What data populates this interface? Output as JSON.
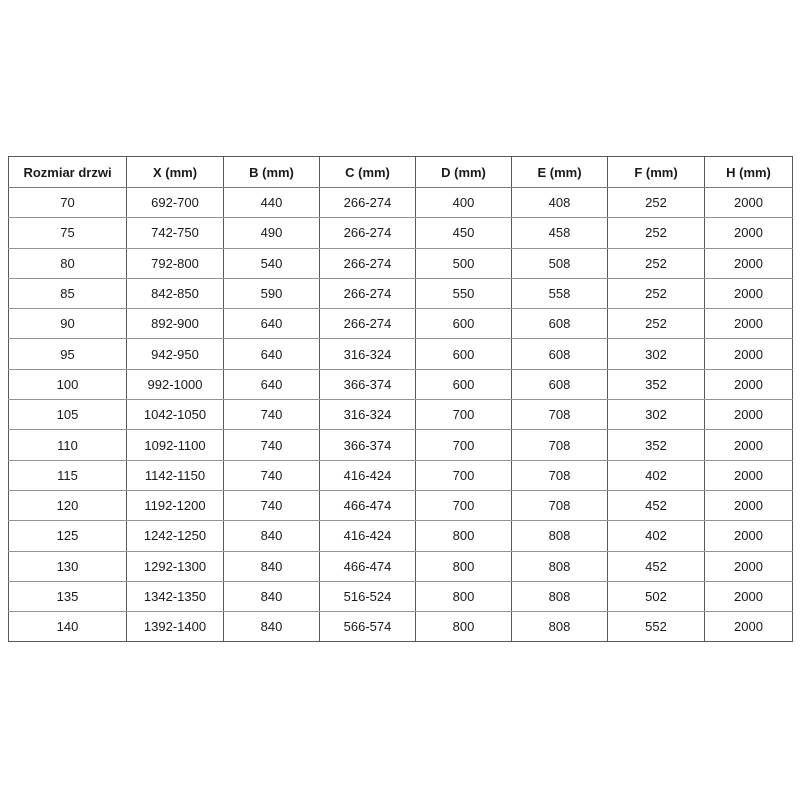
{
  "table": {
    "columns": [
      "Rozmiar drzwi",
      "X (mm)",
      "B (mm)",
      "C (mm)",
      "D (mm)",
      "E (mm)",
      "F (mm)",
      "H (mm)"
    ],
    "rows": [
      [
        "70",
        "692-700",
        "440",
        "266-274",
        "400",
        "408",
        "252",
        "2000"
      ],
      [
        "75",
        "742-750",
        "490",
        "266-274",
        "450",
        "458",
        "252",
        "2000"
      ],
      [
        "80",
        "792-800",
        "540",
        "266-274",
        "500",
        "508",
        "252",
        "2000"
      ],
      [
        "85",
        "842-850",
        "590",
        "266-274",
        "550",
        "558",
        "252",
        "2000"
      ],
      [
        "90",
        "892-900",
        "640",
        "266-274",
        "600",
        "608",
        "252",
        "2000"
      ],
      [
        "95",
        "942-950",
        "640",
        "316-324",
        "600",
        "608",
        "302",
        "2000"
      ],
      [
        "100",
        "992-1000",
        "640",
        "366-374",
        "600",
        "608",
        "352",
        "2000"
      ],
      [
        "105",
        "1042-1050",
        "740",
        "316-324",
        "700",
        "708",
        "302",
        "2000"
      ],
      [
        "110",
        "1092-1100",
        "740",
        "366-374",
        "700",
        "708",
        "352",
        "2000"
      ],
      [
        "115",
        "1142-1150",
        "740",
        "416-424",
        "700",
        "708",
        "402",
        "2000"
      ],
      [
        "120",
        "1192-1200",
        "740",
        "466-474",
        "700",
        "708",
        "452",
        "2000"
      ],
      [
        "125",
        "1242-1250",
        "840",
        "416-424",
        "800",
        "808",
        "402",
        "2000"
      ],
      [
        "130",
        "1292-1300",
        "840",
        "466-474",
        "800",
        "808",
        "452",
        "2000"
      ],
      [
        "135",
        "1342-1350",
        "840",
        "516-524",
        "800",
        "808",
        "502",
        "2000"
      ],
      [
        "140",
        "1392-1400",
        "840",
        "566-574",
        "800",
        "808",
        "552",
        "2000"
      ]
    ],
    "colors": {
      "border_outer": "#595959",
      "border_inner_horizontal": "#969696",
      "text": "#1a1a1a",
      "background": "#ffffff"
    }
  }
}
